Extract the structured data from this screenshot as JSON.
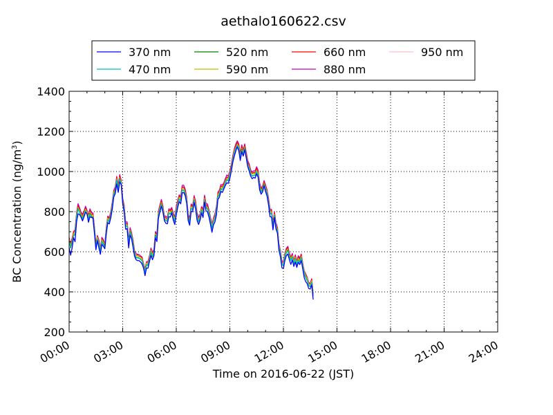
{
  "chart_data": {
    "type": "line",
    "title": "aethalo160622.csv",
    "xlabel": "Time on 2016-06-22 (JST)",
    "ylabel_main": "BC Concentration (ng/m",
    "ylabel_sup": "3",
    "ylabel_tail": ")",
    "xlim": [
      "00:00",
      "24:00"
    ],
    "ylim": [
      200,
      1400
    ],
    "x_ticks": [
      "00:00",
      "03:00",
      "06:00",
      "09:00",
      "12:00",
      "15:00",
      "18:00",
      "21:00",
      "24:00"
    ],
    "y_ticks": [
      200,
      400,
      600,
      800,
      1000,
      1200,
      1400
    ],
    "grid": true,
    "legend_position": "top-center",
    "sample_interval_minutes": 5,
    "series": [
      {
        "name": "370 nm",
        "color": "#0000ff",
        "values": [
          621,
          583,
          618,
          670,
          650,
          749,
          789,
          786,
          772,
          754,
          774,
          797,
          790,
          747,
          775,
          771,
          768,
          693,
          610,
          655,
          620,
          587,
          638,
          627,
          615,
          690,
          745,
          739,
          770,
          812,
          873,
          890,
          938,
          896,
          948,
          935,
          840,
          796,
          712,
          715,
          619,
          683,
          664,
          620,
          577,
          560,
          556,
          556,
          549,
          539,
          519,
          481,
          519,
          518,
          552,
          582,
          560,
          580,
          670,
          651,
          766,
          800,
          827,
          799,
          756,
          742,
          739,
          775,
          773,
          794,
          757,
          736,
          785,
          822,
          851,
          839,
          894,
          895,
          880,
          841,
          755,
          732,
          802,
          799,
          845,
          813,
          756,
          736,
          757,
          793,
          771,
          847,
          804,
          799,
          772,
          736,
          697,
          734,
          749,
          784,
          861,
          872,
          901,
          896,
          914,
          931,
          944,
          941,
          966,
          1002,
          1046,
          1077,
          1102,
          1123,
          1104,
          1055,
          1099,
          1077,
          1108,
          1069,
          1025,
          1002,
          977,
          964,
          971,
          967,
          989,
          971,
          909,
          887,
          898,
          929,
          900,
          878,
          834,
          775,
          773,
          709,
          771,
          714,
          692,
          607,
          575,
          520,
          516,
          557,
          581,
          589,
          560,
          537,
          559,
          527,
          549,
          522,
          548,
          536,
          556,
          514,
          470,
          451,
          441,
          417,
          414,
          435,
          362
        ]
      },
      {
        "name": "470 nm",
        "color": "#00bfbf",
        "values": [
          650,
          624,
          637,
          681,
          684,
          769,
          813,
          797,
          775,
          763,
          784,
          804,
          788,
          760,
          788,
          771,
          770,
          708,
          619,
          663,
          637,
          599,
          653,
          637,
          622,
          702,
          760,
          747,
          781,
          826,
          888,
          898,
          958,
          911,
          961,
          939,
          845,
          809,
          729,
          725,
          636,
          697,
          675,
          636,
          587,
          568,
          570,
          566,
          565,
          554,
          525,
          498,
          535,
          530,
          560,
          600,
          577,
          591,
          677,
          669,
          779,
          812,
          837,
          807,
          760,
          756,
          750,
          792,
          792,
          797,
          770,
          755,
          801,
          832,
          863,
          852,
          906,
          907,
          886,
          853,
          765,
          743,
          817,
          809,
          856,
          827,
          773,
          751,
          767,
          807,
          788,
          857,
          818,
          812,
          789,
          751,
          717,
          749,
          765,
          805,
          875,
          887,
          911,
          910,
          924,
          944,
          957,
          953,
          982,
          1011,
          1055,
          1091,
          1113,
          1131,
          1116,
          1068,
          1106,
          1088,
          1115,
          1073,
          1033,
          1015,
          986,
          979,
          982,
          979,
          1000,
          983,
          921,
          897,
          907,
          934,
          912,
          891,
          843,
          794,
          790,
          725,
          779,
          725,
          701,
          623,
          587,
          537,
          532,
          574,
          598,
          604,
          575,
          556,
          572,
          542,
          565,
          538,
          558,
          546,
          570,
          528,
          489,
          470,
          458,
          432,
          426,
          447,
          380
        ]
      },
      {
        "name": "520 nm",
        "color": "#008000",
        "values": [
          655,
          619,
          643,
          680,
          689,
          772,
          815,
          796,
          778,
          764,
          785,
          804,
          790,
          759,
          791,
          776,
          773,
          707,
          623,
          661,
          638,
          601,
          650,
          641,
          626,
          706,
          757,
          750,
          784,
          826,
          885,
          903,
          958,
          912,
          964,
          938,
          850,
          809,
          729,
          727,
          638,
          700,
          679,
          637,
          587,
          571,
          572,
          568,
          562,
          555,
          527,
          496,
          535,
          534,
          562,
          598,
          575,
          592,
          682,
          667,
          781,
          811,
          839,
          811,
          763,
          756,
          752,
          793,
          789,
          801,
          768,
          752,
          802,
          832,
          862,
          855,
          908,
          906,
          891,
          852,
          769,
          744,
          815,
          809,
          857,
          826,
          774,
          750,
          768,
          804,
          788,
          859,
          821,
          813,
          791,
          748,
          718,
          750,
          764,
          807,
          872,
          886,
          914,
          911,
          923,
          942,
          959,
          955,
          980,
          1013,
          1057,
          1090,
          1113,
          1130,
          1117,
          1067,
          1110,
          1085,
          1118,
          1074,
          1034,
          1016,
          987,
          977,
          980,
          982,
          998,
          981,
          925,
          897,
          909,
          937,
          910,
          887,
          847,
          790,
          792,
          727,
          781,
          725,
          705,
          621,
          589,
          539,
          530,
          571,
          596,
          608,
          577,
          558,
          573,
          541,
          566,
          535,
          559,
          548,
          571,
          528,
          489,
          470,
          456,
          432,
          426,
          446,
          382
        ]
      },
      {
        "name": "590 nm",
        "color": "#bfbf00",
        "values": [
          663,
          631,
          651,
          690,
          695,
          780,
          821,
          806,
          786,
          772,
          792,
          812,
          799,
          770,
          799,
          782,
          781,
          718,
          630,
          672,
          646,
          611,
          660,
          648,
          632,
          713,
          768,
          757,
          791,
          835,
          895,
          909,
          964,
          920,
          970,
          946,
          854,
          817,
          738,
          734,
          647,
          707,
          684,
          645,
          597,
          579,
          581,
          575,
          572,
          564,
          535,
          506,
          544,
          540,
          570,
          608,
          585,
          601,
          689,
          678,
          790,
          820,
          845,
          818,
          769,
          765,
          758,
          801,
          799,
          806,
          778,
          765,
          810,
          841,
          872,
          862,
          914,
          915,
          896,
          862,
          776,
          752,
          825,
          816,
          866,
          834,
          781,
          760,
          775,
          814,
          796,
          866,
          828,
          821,
          798,
          758,
          728,
          758,
          775,
          815,
          884,
          895,
          920,
          919,
          931,
          951,
          966,
          962,
          989,
          1020,
          1063,
          1100,
          1120,
          1137,
          1124,
          1076,
          1116,
          1095,
          1123,
          1081,
          1040,
          1024,
          994,
          987,
          990,
          988,
          1007,
          990,
          931,
          906,
          915,
          942,
          919,
          898,
          853,
          802,
          798,
          734,
          787,
          733,
          710,
          631,
          596,
          546,
          541,
          582,
          606,
          614,
          584,
          565,
          581,
          551,
          573,
          546,
          567,
          555,
          578,
          537,
          498,
          479,
          467,
          441,
          434,
          456,
          389
        ]
      },
      {
        "name": "660 nm",
        "color": "#ff0000",
        "values": [
          668,
          631,
          661,
          702,
          702,
          786,
          829,
          812,
          791,
          778,
          797,
          818,
          801,
          773,
          805,
          786,
          789,
          719,
          635,
          675,
          650,
          612,
          665,
          651,
          635,
          716,
          774,
          762,
          796,
          839,
          898,
          915,
          971,
          924,
          979,
          950,
          859,
          823,
          741,
          741,
          647,
          710,
          688,
          651,
          598,
          580,
          584,
          577,
          575,
          569,
          537,
          508,
          547,
          543,
          576,
          611,
          591,
          606,
          694,
          681,
          793,
          828,
          853,
          822,
          776,
          768,
          763,
          808,
          803,
          813,
          784,
          766,
          815,
          849,
          878,
          870,
          922,
          922,
          902,
          866,
          780,
          759,
          832,
          824,
          871,
          843,
          788,
          765,
          779,
          821,
          800,
          873,
          835,
          827,
          801,
          763,
          731,
          762,
          781,
          818,
          892,
          899,
          928,
          924,
          939,
          956,
          971,
          969,
          998,
          1027,
          1070,
          1105,
          1129,
          1145,
          1132,
          1083,
          1125,
          1101,
          1131,
          1089,
          1047,
          1030,
          1000,
          991,
          995,
          994,
          1016,
          996,
          936,
          911,
          921,
          949,
          926,
          903,
          857,
          806,
          806,
          738,
          793,
          737,
          716,
          634,
          600,
          549,
          545,
          587,
          611,
          620,
          588,
          570,
          584,
          553,
          577,
          549,
          574,
          561,
          584,
          539,
          501,
          483,
          468,
          443,
          438,
          461,
          392
        ]
      },
      {
        "name": "880 nm",
        "color": "#bf00bf",
        "values": [
          671,
          638,
          668,
          697,
          712,
          792,
          840,
          820,
          798,
          788,
          802,
          827,
          808,
          780,
          814,
          797,
          793,
          728,
          637,
          681,
          659,
          617,
          672,
          660,
          639,
          724,
          778,
          770,
          802,
          848,
          906,
          924,
          976,
          932,
          985,
          957,
          867,
          831,
          748,
          749,
          657,
          720,
          694,
          656,
          605,
          589,
          588,
          586,
          579,
          574,
          541,
          515,
          551,
          552,
          581,
          619,
          596,
          613,
          701,
          689,
          802,
          833,
          861,
          829,
          780,
          777,
          771,
          814,
          810,
          821,
          792,
          774,
          826,
          858,
          884,
          876,
          931,
          932,
          912,
          874,
          787,
          767,
          838,
          830,
          880,
          852,
          794,
          772,
          788,
          825,
          812,
          882,
          841,
          838,
          808,
          771,
          739,
          768,
          790,
          827,
          897,
          908,
          935,
          933,
          944,
          965,
          983,
          976,
          1004,
          1035,
          1079,
          1113,
          1137,
          1153,
          1138,
          1091,
          1133,
          1107,
          1138,
          1097,
          1055,
          1038,
          1008,
          998,
          1004,
          1004,
          1024,
          1006,
          944,
          917,
          928,
          955,
          933,
          909,
          868,
          813,
          811,
          744,
          799,
          745,
          721,
          640,
          606,
          555,
          552,
          592,
          618,
          627,
          594,
          574,
          592,
          557,
          585,
          554,
          580,
          570,
          589,
          543,
          505,
          489,
          473,
          448,
          441,
          466,
          394
        ]
      },
      {
        "name": "950 nm",
        "color": "#ffc0cb",
        "values": [
          665,
          634,
          664,
          693,
          706,
          785,
          836,
          814,
          793,
          779,
          797,
          825,
          803,
          776,
          807,
          792,
          790,
          720,
          633,
          679,
          651,
          613,
          666,
          654,
          636,
          716,
          773,
          767,
          796,
          844,
          902,
          917,
          972,
          928,
          979,
          949,
          863,
          827,
          743,
          742,
          651,
          714,
          690,
          651,
          602,
          582,
          585,
          579,
          575,
          568,
          536,
          511,
          546,
          544,
          577,
          615,
          592,
          610,
          696,
          684,
          796,
          830,
          858,
          822,
          776,
          773,
          763,
          808,
          805,
          815,
          784,
          769,
          818,
          853,
          879,
          869,
          926,
          925,
          906,
          868,
          782,
          763,
          834,
          823,
          873,
          845,
          788,
          765,
          784,
          822,
          805,
          877,
          838,
          831,
          806,
          765,
          732,
          762,
          786,
          821,
          889,
          903,
          931,
          925,
          939,
          960,
          979,
          970,
          998,
          1032,
          1075,
          1106,
          1130,
          1148,
          1134,
          1085,
          1127,
          1103,
          1133,
          1092,
          1047,
          1034,
          1003,
          992,
          1000,
          998,
          1020,
          1000,
          937,
          913,
          925,
          950,
          929,
          906,
          861,
          810,
          805,
          740,
          793,
          740,
          718,
          635,
          603,
          550,
          547,
          588,
          613,
          623,
          589,
          571,
          585,
          553,
          579,
          549,
          574,
          565,
          583,
          540,
          501,
          484,
          469,
          443,
          436,
          462,
          389
        ]
      }
    ]
  }
}
